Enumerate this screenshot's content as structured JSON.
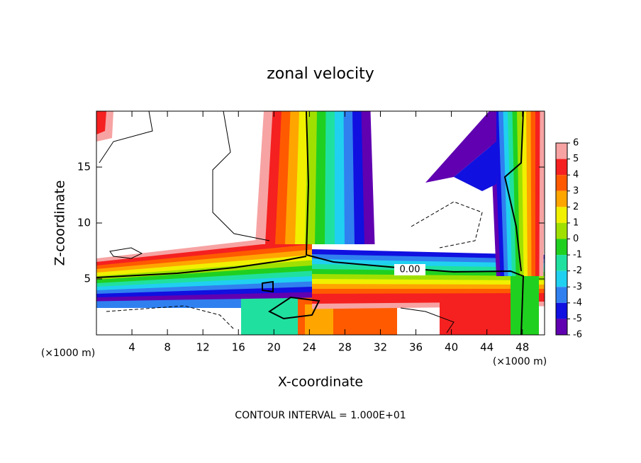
{
  "chart_data": {
    "type": "contour",
    "title": "zonal velocity",
    "x_label": "X-coordinate",
    "y_label": "Z-coordinate",
    "x_unit_label": "(×1000 m)",
    "footer": "CONTOUR INTERVAL = 1.000E+01",
    "contour_label": "0.00",
    "xlim": [
      0,
      50.5
    ],
    "ylim": [
      0,
      20
    ],
    "xticks": [
      4,
      8,
      12,
      16,
      20,
      24,
      28,
      32,
      36,
      40,
      44,
      48
    ],
    "yticks": [
      5,
      10,
      15
    ],
    "colorbar": {
      "levels": [
        6,
        5,
        4,
        3,
        2,
        1,
        0,
        -1,
        -2,
        -3,
        -4,
        -5,
        -6
      ],
      "colors": [
        "#f7a3a3",
        "#f52020",
        "#ff5a00",
        "#ffa500",
        "#f0f000",
        "#a0e000",
        "#20d020",
        "#20e0a0",
        "#20d0f0",
        "#3080f0",
        "#1010e0",
        "#6000b0"
      ]
    }
  }
}
